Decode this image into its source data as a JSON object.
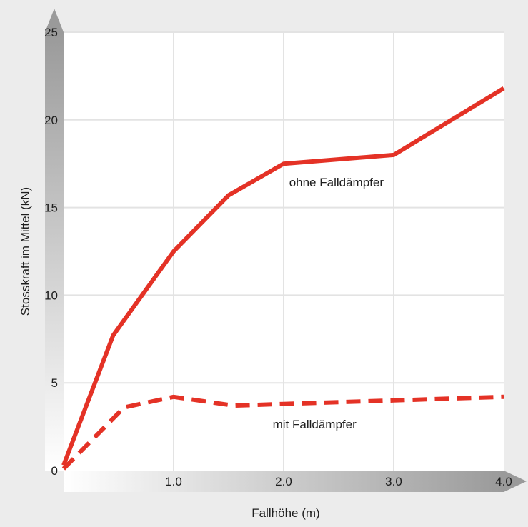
{
  "chart_data": {
    "type": "line",
    "title": "",
    "xlabel": "Fallhöhe (m)",
    "ylabel": "Stosskraft im Mittel (kN)",
    "xlim": [
      0,
      4.0
    ],
    "ylim": [
      0,
      25
    ],
    "grid": true,
    "legend": "none (inline series labels)",
    "x_ticks": [
      "1.0",
      "2.0",
      "3.0",
      "4.0"
    ],
    "y_ticks": [
      "0",
      "5",
      "10",
      "15",
      "20",
      "25"
    ],
    "series": [
      {
        "name": "ohne Falldämpfer",
        "style": "solid",
        "color": "#e43226",
        "x": [
          0,
          0.45,
          1.0,
          1.5,
          2.0,
          3.0,
          4.0
        ],
        "y": [
          0.3,
          7.7,
          12.5,
          15.7,
          17.5,
          18.0,
          21.8
        ]
      },
      {
        "name": "mit Falldämpfer",
        "style": "dashed",
        "color": "#e43226",
        "x": [
          0,
          0.55,
          1.0,
          1.55,
          2.0,
          3.0,
          4.0
        ],
        "y": [
          0.1,
          3.6,
          4.2,
          3.7,
          3.8,
          4.0,
          4.2
        ]
      }
    ],
    "annotations": [
      {
        "text": "ohne Falldämpfer",
        "x": 2.05,
        "y": 16.2
      },
      {
        "text": "mit Falldämpfer",
        "x": 1.9,
        "y": 2.4
      }
    ]
  }
}
